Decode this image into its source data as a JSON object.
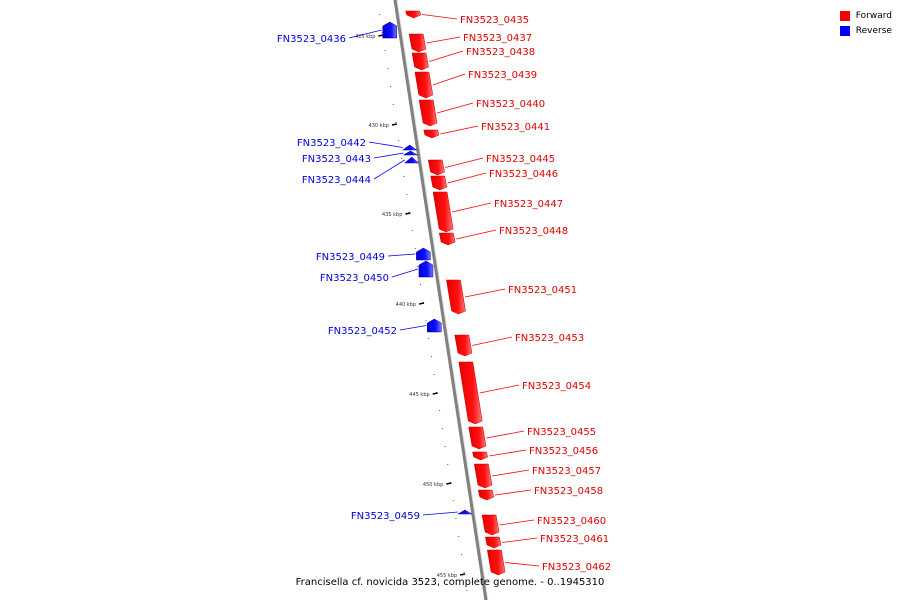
{
  "legend": {
    "forward": {
      "label": "Forward",
      "color": "#ff0000"
    },
    "reverse": {
      "label": "Reverse",
      "color": "#0000ff"
    }
  },
  "caption": "Francisella cf. novicida 3523, complete genome. - 0..1945310",
  "axis_ticks": [
    "425 kbp",
    "430 kbp",
    "435 kbp",
    "440 kbp",
    "445 kbp",
    "450 kbp",
    "455 kbp"
  ],
  "genes_forward": [
    "FN3523_0435",
    "FN3523_0437",
    "FN3523_0438",
    "FN3523_0439",
    "FN3523_0440",
    "FN3523_0441",
    "FN3523_0445",
    "FN3523_0446",
    "FN3523_0447",
    "FN3523_0448",
    "FN3523_0451",
    "FN3523_0453",
    "FN3523_0454",
    "FN3523_0455",
    "FN3523_0456",
    "FN3523_0457",
    "FN3523_0458",
    "FN3523_0460",
    "FN3523_0461",
    "FN3523_0462"
  ],
  "genes_reverse": [
    "FN3523_0436",
    "FN3523_0442",
    "FN3523_0443",
    "FN3523_0444",
    "FN3523_0449",
    "FN3523_0450",
    "FN3523_0452",
    "FN3523_0459"
  ]
}
